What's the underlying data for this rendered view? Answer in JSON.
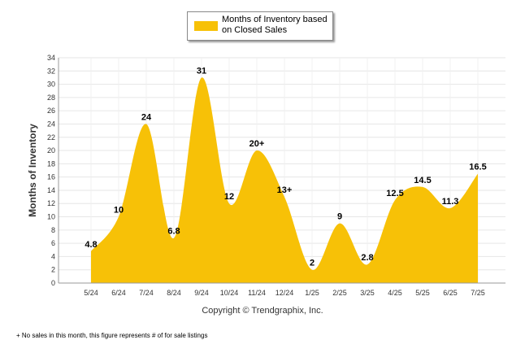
{
  "legend": {
    "label": "Months of Inventory based on Closed Sales",
    "color": "#F7C107"
  },
  "copyright": "Copyright © Trendgraphix, Inc.",
  "footnote": "+  No sales in this month, this figure represents # of for sale listings",
  "chart_data": {
    "type": "area",
    "ylabel": "Months of Inventory",
    "xlabel": "",
    "ylim": [
      0,
      34
    ],
    "yticks": [
      0,
      2,
      4,
      6,
      8,
      10,
      12,
      14,
      16,
      18,
      20,
      22,
      24,
      26,
      28,
      30,
      32,
      34
    ],
    "categories": [
      "5/24",
      "6/24",
      "7/24",
      "8/24",
      "9/24",
      "10/24",
      "11/24",
      "12/24",
      "1/25",
      "2/25",
      "3/25",
      "4/25",
      "5/25",
      "6/25",
      "7/25"
    ],
    "series": [
      {
        "name": "Months of Inventory based on Closed Sales",
        "values": [
          4.8,
          10,
          24,
          6.8,
          31,
          12,
          20,
          13,
          2,
          9,
          2.8,
          12.5,
          14.5,
          11.3,
          16.5
        ],
        "labels": [
          "4.8",
          "10",
          "24",
          "6.8",
          "31",
          "12",
          "20+",
          "13+",
          "2",
          "9",
          "2.8",
          "12.5",
          "14.5",
          "11.3",
          "16.5"
        ]
      }
    ],
    "grid": true,
    "legend_position": "top-center",
    "fill_color": "#F7C107"
  }
}
